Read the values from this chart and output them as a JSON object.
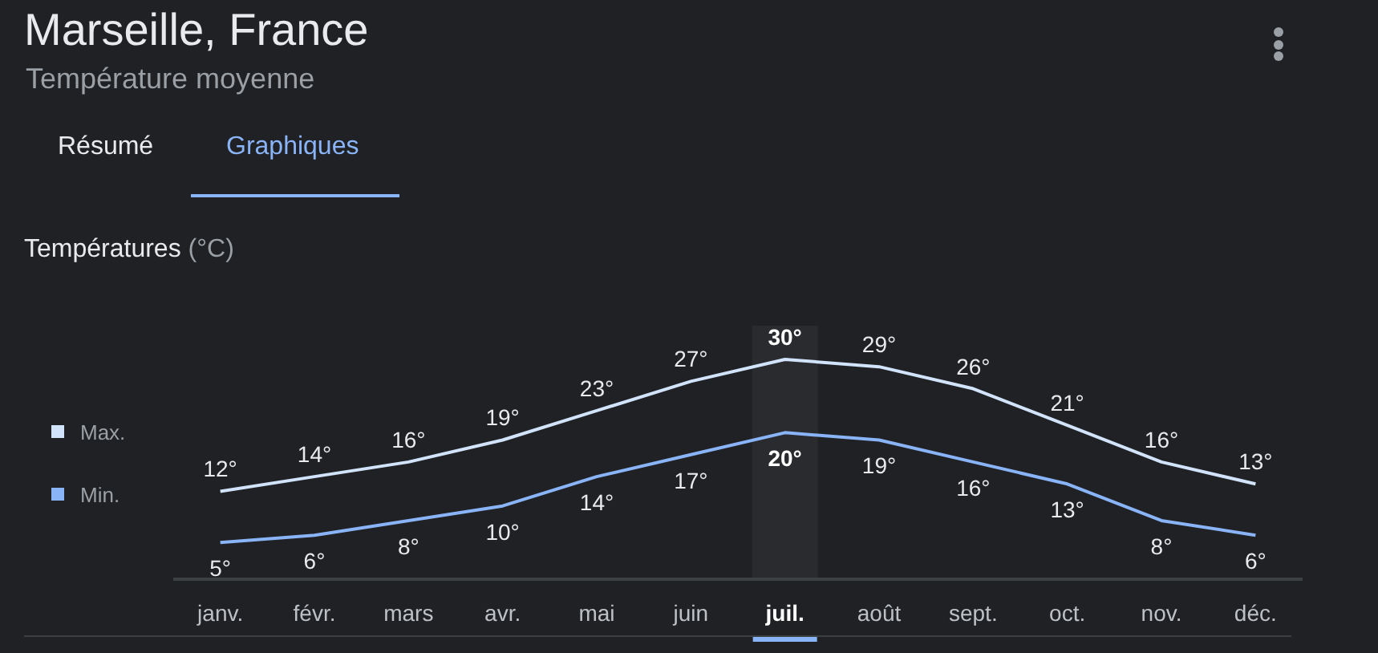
{
  "chart_data": {
    "type": "line",
    "title": "Marseille, France",
    "subtitle": "Température moyenne",
    "annotations": [
      "Résumé",
      "Graphiques",
      "Températures",
      "(°C)"
    ],
    "categories": [
      "janv.",
      "févr.",
      "mars",
      "avr.",
      "mai",
      "juin",
      "juil.",
      "août",
      "sept.",
      "oct.",
      "nov.",
      "déc."
    ],
    "series": [
      {
        "name": "Max.",
        "color": "#d2e3fc",
        "values": [
          12,
          14,
          16,
          19,
          23,
          27,
          30,
          29,
          26,
          21,
          16,
          13
        ],
        "value_labels": [
          "12°",
          "14°",
          "16°",
          "19°",
          "23°",
          "27°",
          "30°",
          "29°",
          "26°",
          "21°",
          "16°",
          "13°"
        ]
      },
      {
        "name": "Min.",
        "color": "#8ab4f8",
        "values": [
          5,
          6,
          8,
          10,
          14,
          17,
          20,
          19,
          16,
          13,
          8,
          6
        ],
        "value_labels": [
          "5°",
          "6°",
          "8°",
          "10°",
          "14°",
          "17°",
          "20°",
          "19°",
          "16°",
          "13°",
          "8°",
          "6°"
        ]
      }
    ],
    "bands": [
      {
        "axis": "x",
        "from": "juil.",
        "to": "juil.",
        "color": "#2a2b2e"
      }
    ],
    "legend": "left",
    "marker": "none",
    "line_style": "solid"
  }
}
